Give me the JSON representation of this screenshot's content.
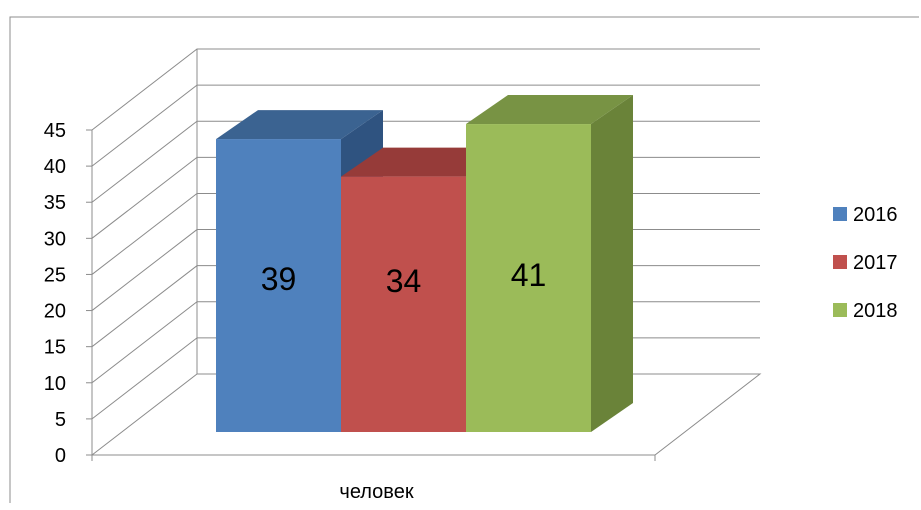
{
  "chart_data": {
    "type": "bar",
    "variant": "3d-clustered-column",
    "categories": [
      "человек"
    ],
    "series": [
      {
        "name": "2016",
        "values": [
          39
        ],
        "color": "#4F81BD",
        "top_color": "#3B6391",
        "side_color": "#2F5380"
      },
      {
        "name": "2017",
        "values": [
          34
        ],
        "color": "#C0504D",
        "top_color": "#963B39",
        "side_color": "#8A3634"
      },
      {
        "name": "2018",
        "values": [
          41
        ],
        "color": "#9BBB59",
        "top_color": "#789344",
        "side_color": "#6A8339"
      }
    ],
    "data_labels": [
      "39",
      "34",
      "41"
    ],
    "ylim": [
      0,
      45
    ],
    "yticks": [
      "0",
      "5",
      "10",
      "15",
      "20",
      "25",
      "30",
      "35",
      "40",
      "45"
    ],
    "title": "",
    "xlabel": "",
    "ylabel": "",
    "grid": true,
    "legend_position": "right",
    "border_color": "#8C8C8C",
    "grid_color": "#8C8C8C"
  }
}
